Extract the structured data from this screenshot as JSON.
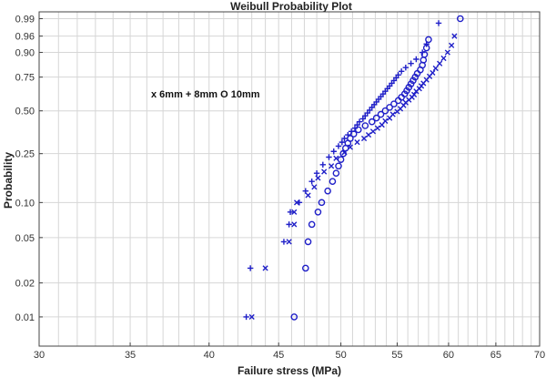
{
  "chart_data": {
    "type": "scatter",
    "title": "Weibull Probability Plot",
    "xlabel": "Failure stress (MPa)",
    "ylabel": "Probability",
    "xlim": [
      30,
      70
    ],
    "x_scale": "log",
    "y_scale": "weibull",
    "grid": true,
    "x_ticks": [
      30,
      35,
      40,
      45,
      50,
      55,
      60,
      65,
      70
    ],
    "y_ticks": [
      0.01,
      0.02,
      0.05,
      0.1,
      0.25,
      0.5,
      0.75,
      0.9,
      0.96,
      0.99
    ],
    "y_tick_labels": [
      "0.01",
      "0.02",
      "0.05",
      "0.10",
      "0.25",
      "0.50",
      "0.75",
      "0.90",
      "0.96",
      "0.99"
    ],
    "legend_text": "x 6mm + 8mm O 10mm",
    "legend_placement": "upper-left",
    "series": [
      {
        "name": "6mm",
        "marker": "x",
        "color": "#1f1fc8",
        "points": [
          [
            43.0,
            0.01
          ],
          [
            44.0,
            0.027
          ],
          [
            45.8,
            0.046
          ],
          [
            46.2,
            0.065
          ],
          [
            46.2,
            0.083
          ],
          [
            46.4,
            0.1
          ],
          [
            47.3,
            0.115
          ],
          [
            47.8,
            0.135
          ],
          [
            48.1,
            0.16
          ],
          [
            48.6,
            0.18
          ],
          [
            49.2,
            0.2
          ],
          [
            49.6,
            0.23
          ],
          [
            50.3,
            0.255
          ],
          [
            50.8,
            0.28
          ],
          [
            51.4,
            0.305
          ],
          [
            52.0,
            0.325
          ],
          [
            52.4,
            0.345
          ],
          [
            52.8,
            0.365
          ],
          [
            53.2,
            0.385
          ],
          [
            53.6,
            0.405
          ],
          [
            53.9,
            0.43
          ],
          [
            54.3,
            0.45
          ],
          [
            54.6,
            0.475
          ],
          [
            55.0,
            0.495
          ],
          [
            55.3,
            0.515
          ],
          [
            55.6,
            0.54
          ],
          [
            55.8,
            0.56
          ],
          [
            56.1,
            0.58
          ],
          [
            56.4,
            0.6
          ],
          [
            56.6,
            0.62
          ],
          [
            56.8,
            0.645
          ],
          [
            57.1,
            0.665
          ],
          [
            57.3,
            0.685
          ],
          [
            57.5,
            0.705
          ],
          [
            57.8,
            0.73
          ],
          [
            58.1,
            0.755
          ],
          [
            58.4,
            0.78
          ],
          [
            58.7,
            0.81
          ],
          [
            59.1,
            0.84
          ],
          [
            59.5,
            0.87
          ],
          [
            59.9,
            0.9
          ],
          [
            60.3,
            0.93
          ],
          [
            60.6,
            0.96
          ]
        ]
      },
      {
        "name": "8mm",
        "marker": "+",
        "color": "#1f1fc8",
        "points": [
          [
            42.6,
            0.01
          ],
          [
            42.9,
            0.027
          ],
          [
            45.4,
            0.046
          ],
          [
            45.8,
            0.065
          ],
          [
            45.9,
            0.083
          ],
          [
            46.6,
            0.1
          ],
          [
            47.1,
            0.125
          ],
          [
            47.6,
            0.15
          ],
          [
            48.0,
            0.175
          ],
          [
            48.5,
            0.205
          ],
          [
            49.0,
            0.235
          ],
          [
            49.4,
            0.26
          ],
          [
            49.8,
            0.285
          ],
          [
            50.1,
            0.305
          ],
          [
            50.3,
            0.325
          ],
          [
            50.6,
            0.345
          ],
          [
            50.9,
            0.365
          ],
          [
            51.2,
            0.385
          ],
          [
            51.4,
            0.405
          ],
          [
            51.6,
            0.425
          ],
          [
            51.9,
            0.445
          ],
          [
            52.1,
            0.465
          ],
          [
            52.3,
            0.485
          ],
          [
            52.5,
            0.505
          ],
          [
            52.7,
            0.525
          ],
          [
            52.9,
            0.545
          ],
          [
            53.1,
            0.565
          ],
          [
            53.3,
            0.585
          ],
          [
            53.5,
            0.605
          ],
          [
            53.7,
            0.625
          ],
          [
            53.9,
            0.645
          ],
          [
            54.1,
            0.665
          ],
          [
            54.3,
            0.685
          ],
          [
            54.5,
            0.705
          ],
          [
            54.7,
            0.725
          ],
          [
            54.9,
            0.745
          ],
          [
            55.1,
            0.765
          ],
          [
            55.4,
            0.79
          ],
          [
            55.8,
            0.815
          ],
          [
            56.3,
            0.84
          ],
          [
            56.8,
            0.865
          ],
          [
            57.4,
            0.9
          ],
          [
            57.8,
            0.935
          ],
          [
            59.0,
            0.985
          ]
        ]
      },
      {
        "name": "10mm",
        "marker": "o",
        "color": "#1f1fc8",
        "points": [
          [
            46.2,
            0.01
          ],
          [
            47.1,
            0.027
          ],
          [
            47.3,
            0.046
          ],
          [
            47.6,
            0.065
          ],
          [
            48.1,
            0.083
          ],
          [
            48.4,
            0.1
          ],
          [
            48.9,
            0.125
          ],
          [
            49.3,
            0.15
          ],
          [
            49.6,
            0.175
          ],
          [
            49.8,
            0.2
          ],
          [
            50.0,
            0.225
          ],
          [
            50.2,
            0.25
          ],
          [
            50.4,
            0.275
          ],
          [
            50.6,
            0.3
          ],
          [
            50.8,
            0.325
          ],
          [
            51.1,
            0.35
          ],
          [
            51.5,
            0.375
          ],
          [
            52.1,
            0.4
          ],
          [
            52.7,
            0.425
          ],
          [
            53.1,
            0.45
          ],
          [
            53.5,
            0.475
          ],
          [
            53.9,
            0.5
          ],
          [
            54.3,
            0.525
          ],
          [
            54.7,
            0.55
          ],
          [
            55.1,
            0.575
          ],
          [
            55.4,
            0.6
          ],
          [
            55.7,
            0.625
          ],
          [
            55.9,
            0.65
          ],
          [
            56.1,
            0.675
          ],
          [
            56.3,
            0.7
          ],
          [
            56.5,
            0.725
          ],
          [
            56.7,
            0.75
          ],
          [
            56.9,
            0.775
          ],
          [
            57.2,
            0.8
          ],
          [
            57.4,
            0.83
          ],
          [
            57.5,
            0.86
          ],
          [
            57.6,
            0.89
          ],
          [
            57.8,
            0.92
          ],
          [
            58.0,
            0.95
          ],
          [
            61.2,
            0.99
          ]
        ]
      }
    ]
  }
}
